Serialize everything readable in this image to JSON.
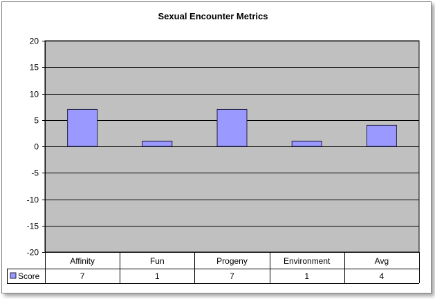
{
  "chart_data": {
    "type": "bar",
    "title": "Sexual Encounter Metrics",
    "categories": [
      "Affinity",
      "Fun",
      "Progeny",
      "Environment",
      "Avg"
    ],
    "series": [
      {
        "name": "Score",
        "values": [
          7,
          1,
          7,
          1,
          4
        ]
      }
    ],
    "ylim": [
      -20,
      20
    ],
    "yticks": [
      20,
      15,
      10,
      5,
      0,
      -5,
      -10,
      -15,
      -20
    ],
    "grid": true,
    "legend": "data-table-left",
    "data_table": true,
    "colors": {
      "plot_background": "#c0c0c0",
      "bar_fill": "#9999ff",
      "bar_stroke": "#1f1f3f",
      "gridline": "#000000",
      "table_border": "#000000"
    }
  }
}
